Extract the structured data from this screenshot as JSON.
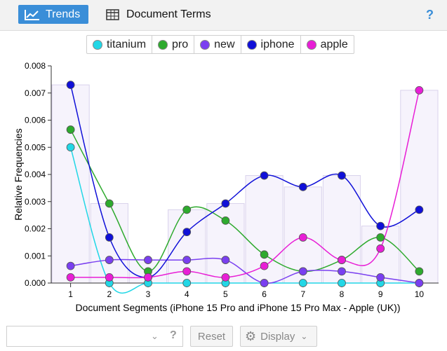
{
  "toolbar": {
    "trends_label": "Trends",
    "terms_label": "Document Terms",
    "help_label": "?"
  },
  "bottom": {
    "combo_value": "",
    "combo_help": "?",
    "reset_label": "Reset",
    "display_label": "Display"
  },
  "chart_data": {
    "type": "line",
    "xlabel": "Document Segments (iPhone 15 Pro and iPhone 15 Pro Max - Apple (UK))",
    "ylabel": "Relative Frequencies",
    "x": [
      1,
      2,
      3,
      4,
      5,
      6,
      7,
      8,
      9,
      10
    ],
    "ylim": [
      0,
      0.008
    ],
    "yticks": [
      "0.000",
      "0.001",
      "0.002",
      "0.003",
      "0.004",
      "0.005",
      "0.006",
      "0.007",
      "0.008"
    ],
    "legend_position": "top",
    "series": [
      {
        "name": "titanium",
        "color": "#22d7e6",
        "values": [
          0.005,
          0.0,
          0.0,
          0.0,
          0.0,
          0.0,
          0.0,
          0.0,
          0.0,
          0.0
        ]
      },
      {
        "name": "pro",
        "color": "#2eaa2e",
        "values": [
          0.00565,
          0.00293,
          0.00043,
          0.0027,
          0.0023,
          0.00105,
          0.00043,
          0.00085,
          0.00168,
          0.00043
        ]
      },
      {
        "name": "new",
        "color": "#7a3ff0",
        "values": [
          0.00063,
          0.00085,
          0.00085,
          0.00085,
          0.00085,
          0.0,
          0.00043,
          0.00043,
          0.00021,
          0.0
        ]
      },
      {
        "name": "iphone",
        "color": "#1010d8",
        "values": [
          0.0073,
          0.00168,
          0.00021,
          0.00188,
          0.00293,
          0.00396,
          0.00354,
          0.00396,
          0.0021,
          0.0027
        ]
      },
      {
        "name": "apple",
        "color": "#e81ed6",
        "values": [
          0.00021,
          0.00021,
          0.00021,
          0.00043,
          0.00021,
          0.00063,
          0.00168,
          0.00085,
          0.00127,
          0.0071
        ]
      }
    ]
  }
}
